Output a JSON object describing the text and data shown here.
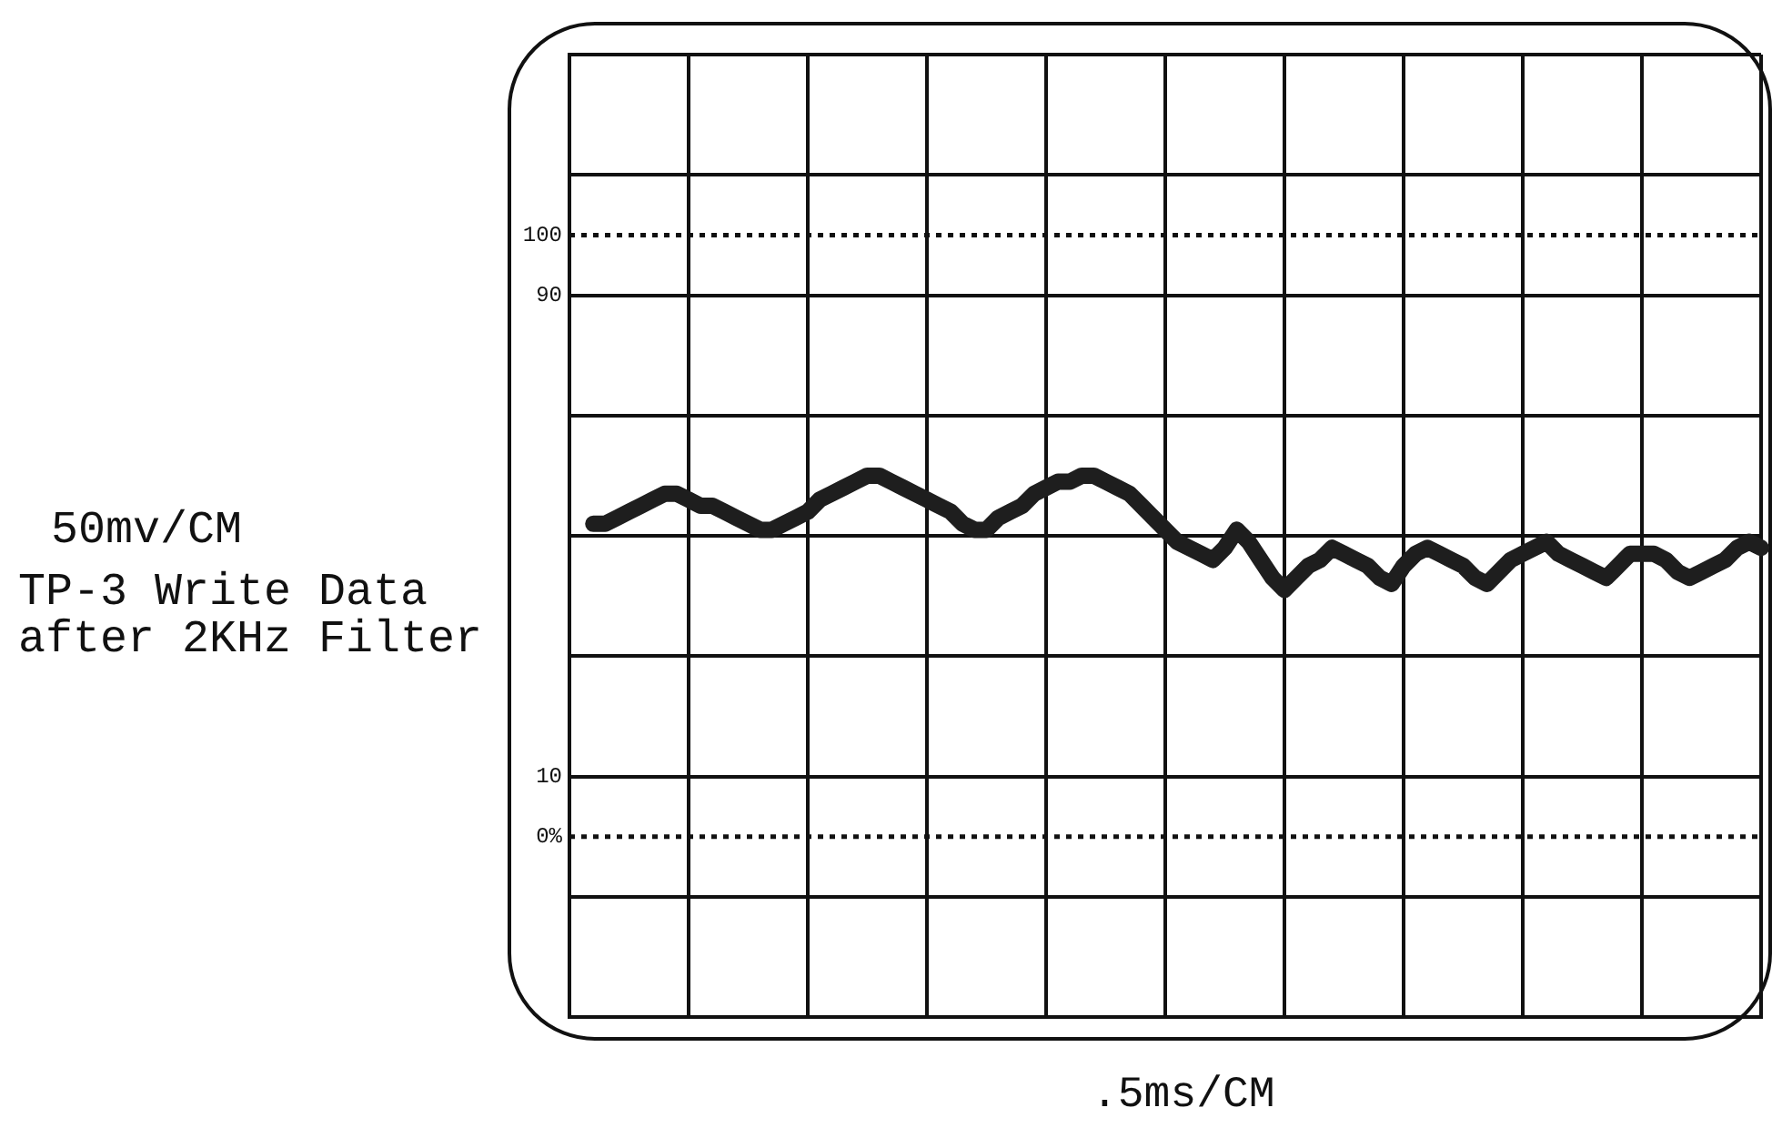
{
  "chart_data": {
    "type": "line",
    "title": "TP-3 Write Data after 2KHz Filter",
    "xlabel": ".5ms/CM",
    "annotations": [
      "50mv/CM"
    ],
    "categories": [
      null,
      null,
      null,
      null,
      null,
      null,
      null,
      null,
      null,
      null,
      null,
      null,
      null,
      null,
      null,
      null,
      null,
      null,
      null,
      null,
      null,
      null,
      null,
      null,
      null,
      null,
      null,
      null,
      null,
      null,
      null,
      null,
      null,
      null,
      null,
      null,
      null,
      null,
      null,
      null,
      null,
      null,
      null,
      null,
      null,
      null,
      null,
      null,
      null,
      null,
      null,
      null,
      null,
      null,
      null,
      null,
      null,
      null,
      null,
      null,
      null,
      null,
      null,
      null,
      null,
      null,
      null,
      null,
      null,
      null,
      null,
      null,
      null,
      null,
      null,
      null,
      null,
      null,
      null,
      null,
      null,
      null,
      null,
      null,
      null,
      null,
      null,
      null,
      null,
      null,
      null,
      null,
      null,
      null,
      null,
      null,
      null,
      null,
      null,
      null,
      null
    ],
    "series": [
      {
        "color": "#1e1e1e",
        "values": [
          null,
          null,
          52,
          52,
          53,
          54,
          55,
          56,
          57,
          57,
          56,
          55,
          55,
          54,
          53,
          52,
          51,
          51,
          52,
          53,
          54,
          56,
          57,
          58,
          59,
          60,
          60,
          59,
          58,
          57,
          56,
          55,
          54,
          52,
          51,
          51,
          53,
          54,
          55,
          57,
          58,
          59,
          59,
          60,
          60,
          59,
          58,
          57,
          55,
          53,
          51,
          49,
          48,
          47,
          46,
          48,
          51,
          49,
          46,
          43,
          41,
          43,
          45,
          46,
          48,
          47,
          46,
          45,
          43,
          42,
          45,
          47,
          48,
          47,
          46,
          45,
          43,
          42,
          44,
          46,
          47,
          48,
          49,
          47,
          46,
          45,
          44,
          43,
          45,
          47,
          47,
          47,
          46,
          44,
          43,
          44,
          45,
          46,
          48,
          49,
          48
        ]
      }
    ],
    "ylim": [
      -30,
      130
    ],
    "yticks": [
      {
        "value": -30,
        "label": null
      },
      {
        "value": -10,
        "label": null
      },
      10,
      {
        "value": 30,
        "label": null
      },
      {
        "value": 50,
        "label": null
      },
      {
        "value": 70,
        "label": null
      },
      90,
      {
        "value": 110,
        "label": null
      },
      {
        "value": 130,
        "label": null
      }
    ],
    "ref_lines": [
      {
        "axis": "y",
        "value": 0,
        "label": "0%",
        "line_style": "dotted"
      },
      {
        "axis": "y",
        "value": 100,
        "label": "100",
        "line_style": "dotted"
      }
    ],
    "grid": true,
    "legend": false,
    "tick_labels": "y",
    "marker": "none",
    "line_style": "solid"
  }
}
